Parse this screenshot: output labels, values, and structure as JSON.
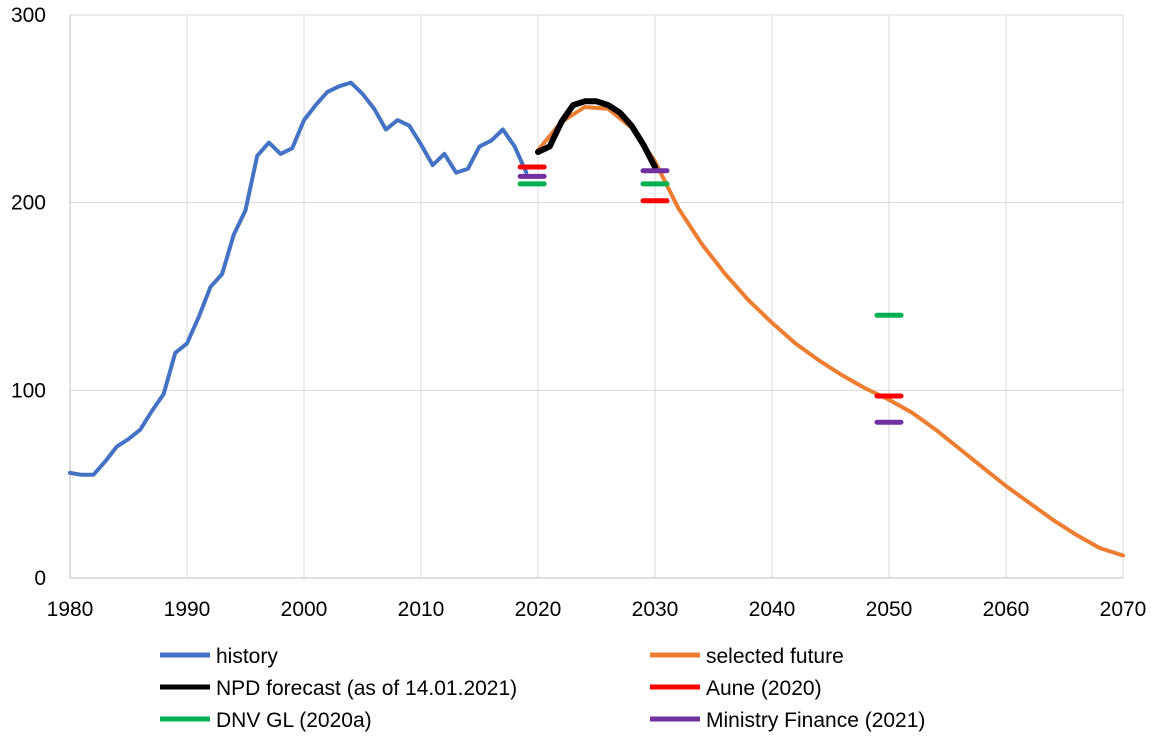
{
  "chart_data": {
    "type": "line",
    "title": "",
    "xlabel": "",
    "ylabel": "",
    "xlim": [
      1980,
      2070
    ],
    "ylim": [
      0,
      300
    ],
    "x_ticks": [
      1980,
      1990,
      2000,
      2010,
      2020,
      2030,
      2040,
      2050,
      2060,
      2070
    ],
    "y_ticks": [
      0,
      100,
      200,
      300
    ],
    "grid": "vertical and horizontal",
    "legend_position": "bottom",
    "series": [
      {
        "name": "history",
        "color": "#4472C4",
        "kind": "line",
        "points": [
          [
            1980,
            56
          ],
          [
            1981,
            55
          ],
          [
            1982,
            55
          ],
          [
            1983,
            62
          ],
          [
            1984,
            70
          ],
          [
            1985,
            74
          ],
          [
            1986,
            79
          ],
          [
            1987,
            89
          ],
          [
            1988,
            98
          ],
          [
            1989,
            120
          ],
          [
            1990,
            125
          ],
          [
            1991,
            139
          ],
          [
            1992,
            155
          ],
          [
            1993,
            162
          ],
          [
            1994,
            183
          ],
          [
            1995,
            196
          ],
          [
            1996,
            225
          ],
          [
            1997,
            232
          ],
          [
            1998,
            226
          ],
          [
            1999,
            229
          ],
          [
            2000,
            244
          ],
          [
            2001,
            252
          ],
          [
            2002,
            259
          ],
          [
            2003,
            262
          ],
          [
            2004,
            264
          ],
          [
            2005,
            258
          ],
          [
            2006,
            250
          ],
          [
            2007,
            239
          ],
          [
            2008,
            244
          ],
          [
            2009,
            241
          ],
          [
            2010,
            231
          ],
          [
            2011,
            220
          ],
          [
            2012,
            226
          ],
          [
            2013,
            216
          ],
          [
            2014,
            218
          ],
          [
            2015,
            230
          ],
          [
            2016,
            233
          ],
          [
            2017,
            239
          ],
          [
            2018,
            230
          ],
          [
            2019,
            216
          ]
        ]
      },
      {
        "name": "selected future",
        "color": "#ED7D31",
        "kind": "line",
        "points": [
          [
            2020,
            228
          ],
          [
            2022,
            243
          ],
          [
            2024,
            251
          ],
          [
            2026,
            250
          ],
          [
            2028,
            240
          ],
          [
            2030,
            222
          ],
          [
            2032,
            197
          ],
          [
            2034,
            178
          ],
          [
            2036,
            162
          ],
          [
            2038,
            148
          ],
          [
            2040,
            136
          ],
          [
            2042,
            125
          ],
          [
            2044,
            116
          ],
          [
            2046,
            108
          ],
          [
            2048,
            101
          ],
          [
            2050,
            95
          ],
          [
            2052,
            88
          ],
          [
            2054,
            79
          ],
          [
            2056,
            69
          ],
          [
            2058,
            59
          ],
          [
            2060,
            49
          ],
          [
            2062,
            40
          ],
          [
            2064,
            31
          ],
          [
            2066,
            23
          ],
          [
            2068,
            16
          ],
          [
            2070,
            12
          ]
        ]
      },
      {
        "name": "NPD forecast (as of 14.01.2021)",
        "color": "#000000",
        "kind": "line",
        "points": [
          [
            2020,
            227
          ],
          [
            2021,
            230
          ],
          [
            2022,
            243
          ],
          [
            2023,
            252
          ],
          [
            2024,
            254
          ],
          [
            2025,
            254
          ],
          [
            2026,
            252
          ],
          [
            2027,
            248
          ],
          [
            2028,
            241
          ],
          [
            2029,
            231
          ],
          [
            2030,
            219
          ]
        ]
      },
      {
        "name": "Aune (2020)",
        "color": "#FF0000",
        "kind": "marks",
        "points": [
          [
            2019.5,
            219
          ],
          [
            2030,
            201
          ],
          [
            2050,
            97
          ]
        ]
      },
      {
        "name": "DNV GL (2020a)",
        "color": "#00B050",
        "kind": "marks",
        "points": [
          [
            2019.5,
            210
          ],
          [
            2030,
            210
          ],
          [
            2050,
            140
          ]
        ]
      },
      {
        "name": "Ministry Finance (2021)",
        "color": "#7030A0",
        "kind": "marks",
        "points": [
          [
            2019.5,
            214
          ],
          [
            2030,
            217
          ],
          [
            2050,
            83
          ]
        ]
      }
    ]
  }
}
